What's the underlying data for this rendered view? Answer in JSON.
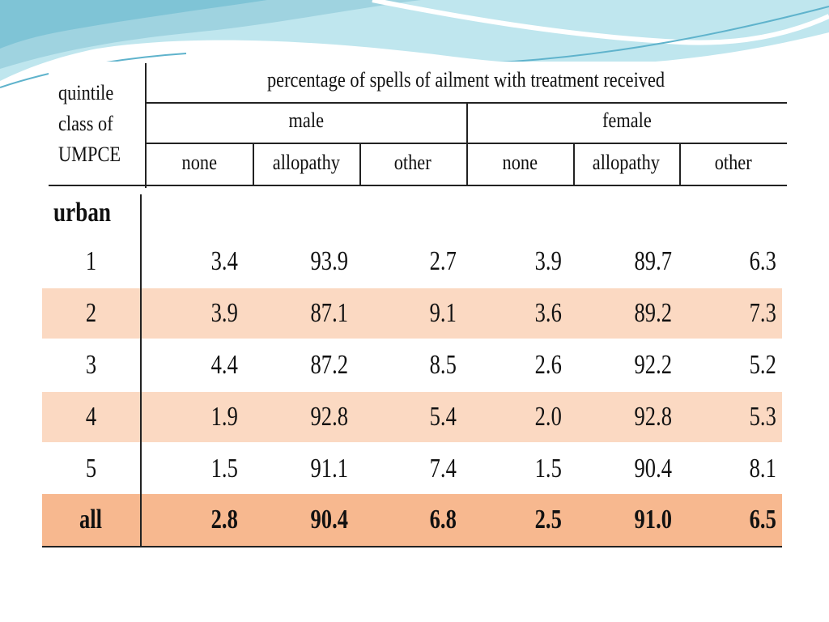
{
  "header": {
    "stub_lines": [
      "quintile",
      "class of",
      "UMPCE"
    ],
    "title": "percentage of spells of ailment with treatment received",
    "groups": [
      "male",
      "female"
    ],
    "columns": [
      "none",
      "allopathy",
      "other",
      "none",
      "allopathy",
      "other"
    ]
  },
  "section_label": "urban",
  "rows": [
    {
      "label": "1",
      "values": [
        "3.4",
        "93.9",
        "2.7",
        "3.9",
        "89.7",
        "6.3"
      ]
    },
    {
      "label": "2",
      "values": [
        "3.9",
        "87.1",
        "9.1",
        "3.6",
        "89.2",
        "7.3"
      ]
    },
    {
      "label": "3",
      "values": [
        "4.4",
        "87.2",
        "8.5",
        "2.6",
        "92.2",
        "5.2"
      ]
    },
    {
      "label": "4",
      "values": [
        "1.9",
        "92.8",
        "5.4",
        "2.0",
        "92.8",
        "5.3"
      ]
    },
    {
      "label": "5",
      "values": [
        "1.5",
        "91.1",
        "7.4",
        "1.5",
        "90.4",
        "8.1"
      ]
    },
    {
      "label": "all",
      "values": [
        "2.8",
        "90.4",
        "6.8",
        "2.5",
        "91.0",
        "6.5"
      ]
    }
  ],
  "colors": {
    "shade": "#fbd9c2",
    "total": "#f7b88f",
    "wave_light": "#bfe6ee",
    "wave_dark": "#7fc4d6"
  }
}
